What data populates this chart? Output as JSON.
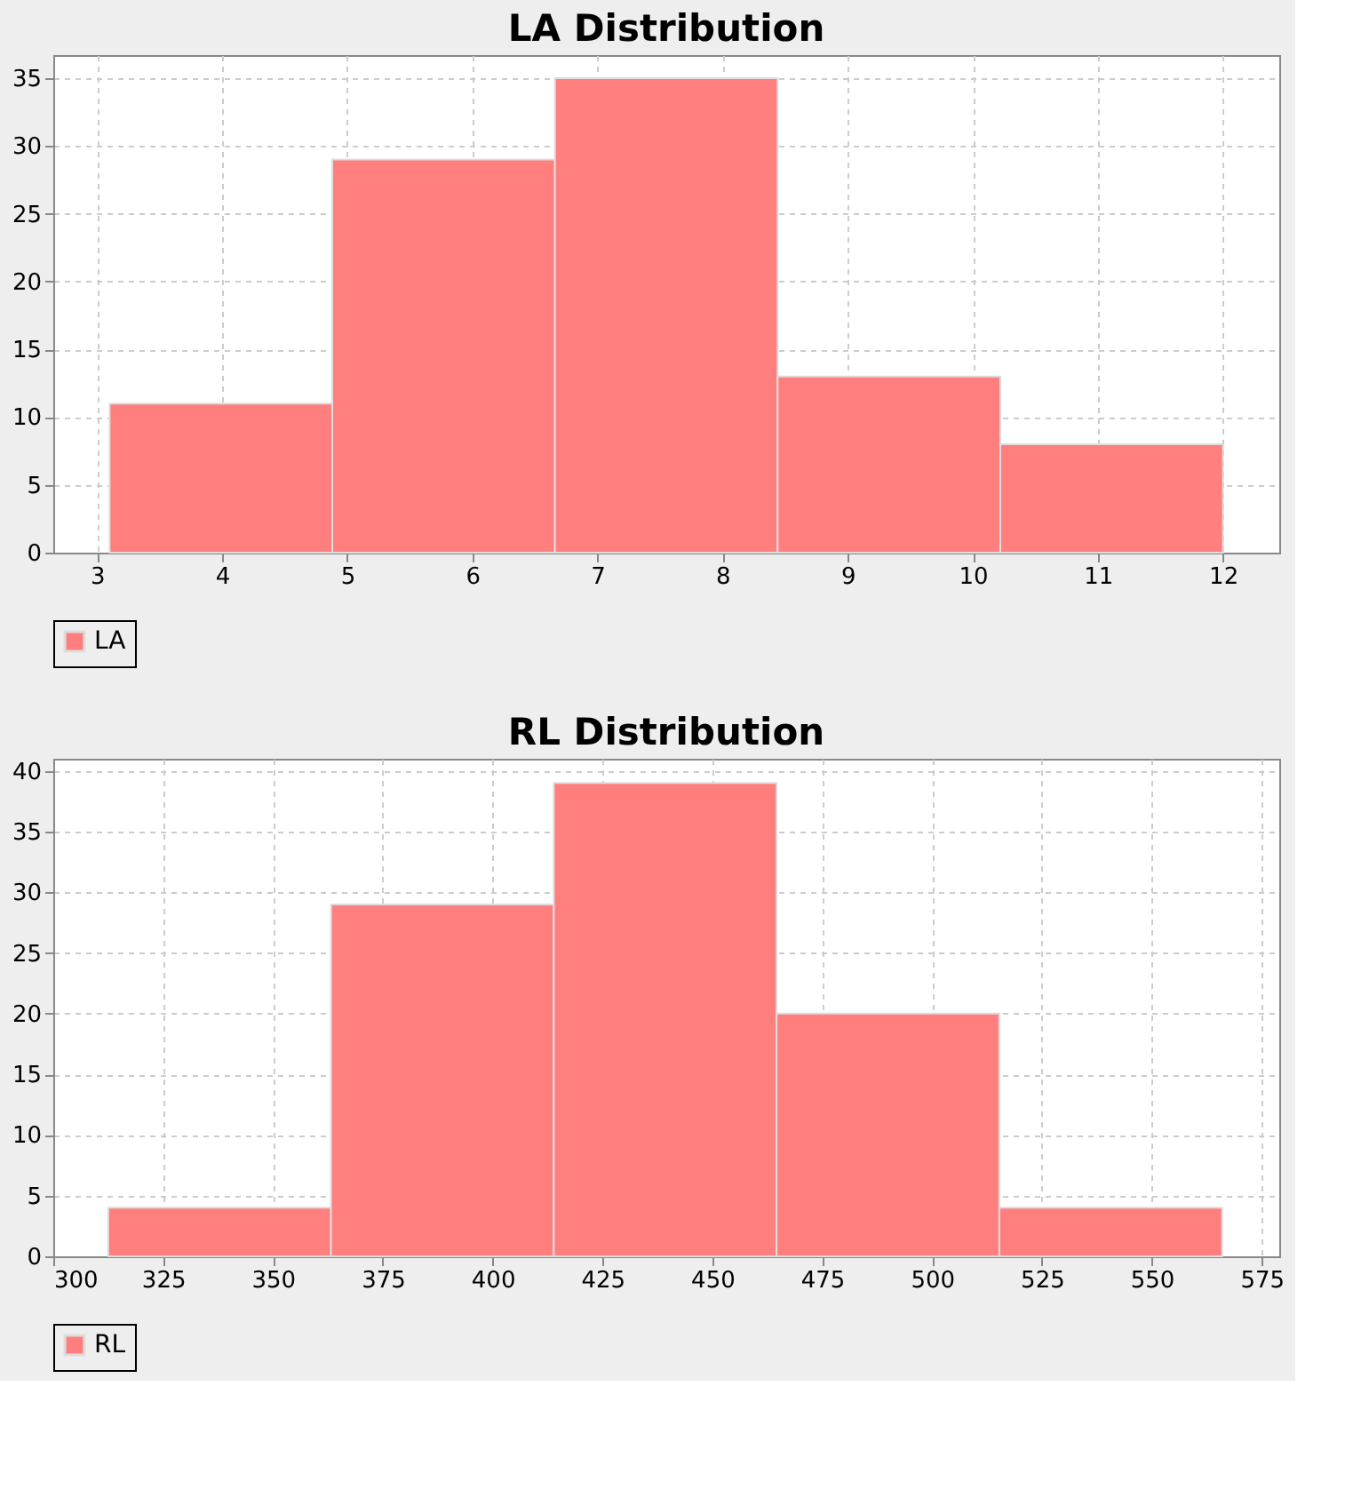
{
  "chart_data": [
    {
      "type": "histogram",
      "title": "LA Distribution",
      "bins": [
        3.1,
        4.88,
        6.66,
        8.44,
        10.22,
        12.0
      ],
      "series": [
        {
          "name": "LA",
          "color": "#ff7f7f",
          "values": [
            11,
            29,
            35,
            13,
            8
          ]
        }
      ],
      "xlim": [
        2.65,
        12.45
      ],
      "xticks": [
        3,
        4,
        5,
        6,
        7,
        8,
        9,
        10,
        11,
        12
      ],
      "ylim": [
        0,
        36.7
      ],
      "yticks": [
        0,
        5,
        10,
        15,
        20,
        25,
        30,
        35
      ],
      "grid": true,
      "legend": "bottom"
    },
    {
      "type": "histogram",
      "title": "RL Distribution",
      "bins": [
        312.5,
        363.2,
        413.9,
        464.6,
        515.3,
        566.0
      ],
      "series": [
        {
          "name": "RL",
          "color": "#ff7f7f",
          "values": [
            4,
            29,
            39,
            20,
            4
          ]
        }
      ],
      "xlim": [
        300,
        579
      ],
      "xticks": [
        300,
        325,
        350,
        375,
        400,
        425,
        450,
        475,
        500,
        525,
        550,
        575
      ],
      "ylim": [
        0,
        41
      ],
      "yticks": [
        0,
        5,
        10,
        15,
        20,
        25,
        30,
        35,
        40
      ],
      "grid": true,
      "legend": "bottom"
    }
  ]
}
